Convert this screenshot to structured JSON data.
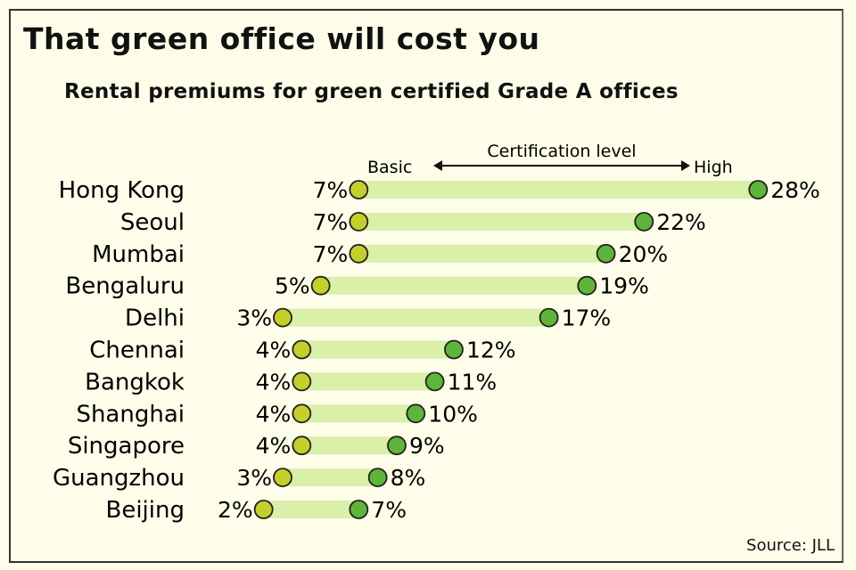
{
  "title": "That green office will cost you",
  "subtitle": "Rental premiums for green certified Grade A offices",
  "source": "Source: JLL",
  "legend": {
    "axis_label": "Certification level",
    "low_label": "Basic",
    "high_label": "High"
  },
  "colors": {
    "background": "#fdfde9",
    "bar": "#d9f0a8",
    "basic_dot": "#c4cf2c",
    "high_dot": "#5fb43b",
    "outline": "#222222"
  },
  "chart_data": {
    "type": "dumbbell",
    "title": "That green office will cost you",
    "subtitle": "Rental premiums for green certified Grade A offices",
    "xlabel": "Certification level (Basic → High)",
    "ylabel": "",
    "unit": "%",
    "categories": [
      "Hong Kong",
      "Seoul",
      "Mumbai",
      "Bengaluru",
      "Delhi",
      "Chennai",
      "Bangkok",
      "Shanghai",
      "Singapore",
      "Guangzhou",
      "Beijing"
    ],
    "series": [
      {
        "name": "Basic",
        "values": [
          7,
          7,
          7,
          5,
          3,
          4,
          4,
          4,
          4,
          3,
          2
        ]
      },
      {
        "name": "High",
        "values": [
          28,
          22,
          20,
          19,
          17,
          12,
          11,
          10,
          9,
          8,
          7
        ]
      }
    ],
    "grid": false,
    "legend_position": "top"
  }
}
